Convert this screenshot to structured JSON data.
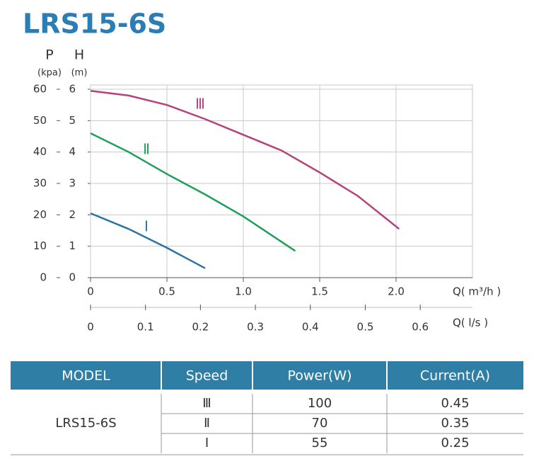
{
  "chart_data": {
    "type": "line",
    "title": "LRS15-6S",
    "xlabel": "Q( m³/h )",
    "x2label": "Q( l/s )",
    "ylabel": "H",
    "ylabel_unit": "(m)",
    "y2label": "P",
    "y2label_unit": "(kpa)",
    "xlim": [
      0,
      2.5
    ],
    "xticks": [
      0,
      0.5,
      {
        "value": 1,
        "label": "1.0"
      },
      1.5,
      {
        "value": 2,
        "label": "2.0"
      }
    ],
    "x2lim": [
      0,
      0.695
    ],
    "x2ticks": [
      0,
      0.1,
      0.2,
      0.3,
      0.4,
      0.5,
      0.6
    ],
    "ylim": [
      0,
      6
    ],
    "yticks": [
      0,
      1,
      2,
      3,
      4,
      5,
      6
    ],
    "y2lim": [
      0,
      60
    ],
    "y2ticks": [
      0,
      10,
      20,
      30,
      40,
      50,
      60
    ],
    "grid": true,
    "series": [
      {
        "name": "Ⅲ",
        "color": "#b4427c",
        "x": [
          0,
          0.25,
          0.5,
          0.75,
          1.0,
          1.25,
          1.5,
          1.75,
          2.02
        ],
        "values": [
          5.95,
          5.8,
          5.5,
          5.05,
          4.55,
          4.05,
          3.35,
          2.6,
          1.55
        ]
      },
      {
        "name": "Ⅱ",
        "color": "#1fa05a",
        "x": [
          0,
          0.25,
          0.5,
          0.75,
          1.0,
          1.34
        ],
        "values": [
          4.6,
          4.0,
          3.3,
          2.65,
          1.95,
          0.85
        ]
      },
      {
        "name": "Ⅰ",
        "color": "#2e73a0",
        "x": [
          0,
          0.25,
          0.5,
          0.75
        ],
        "values": [
          2.05,
          1.55,
          0.95,
          0.3
        ]
      }
    ]
  },
  "table": {
    "header": [
      "MODEL",
      "Speed",
      "Power(W)",
      "Current(A)"
    ],
    "model": "LRS15-6S",
    "rows": [
      [
        "Ⅲ",
        100,
        0.45
      ],
      [
        "Ⅱ",
        70,
        0.35
      ],
      [
        "Ⅰ",
        55,
        0.25
      ]
    ]
  }
}
